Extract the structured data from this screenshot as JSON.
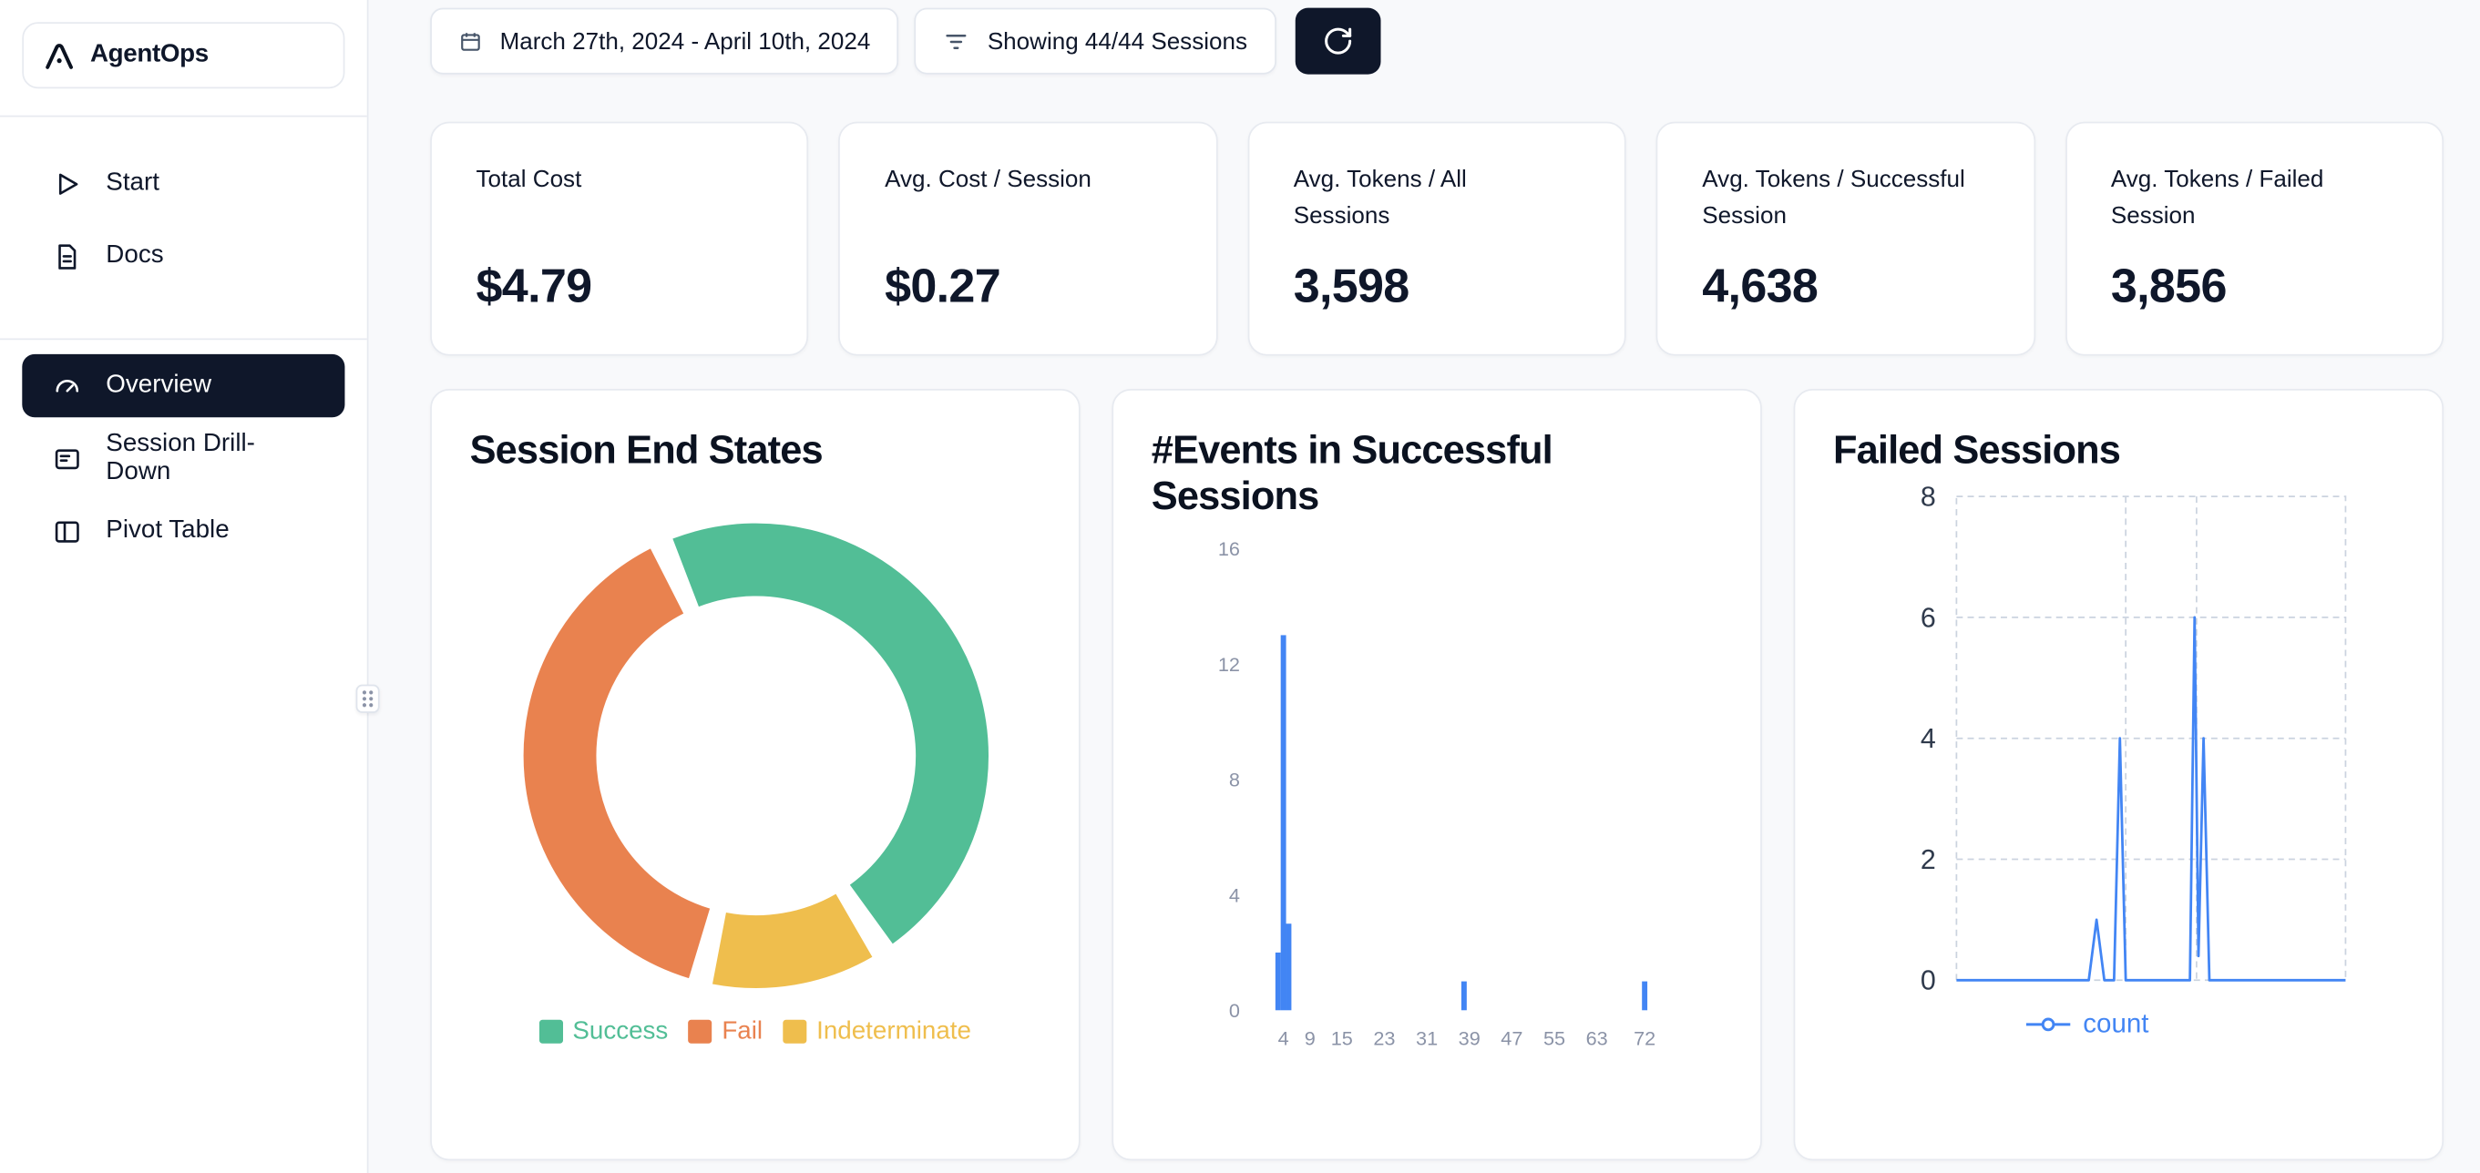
{
  "app": {
    "name": "AgentOps"
  },
  "sidebar": {
    "logo_text": "AgentOps",
    "primary_items": [
      {
        "label": "Start"
      },
      {
        "label": "Docs"
      }
    ],
    "secondary_items": [
      {
        "label": "Overview",
        "active": true
      },
      {
        "label": "Session Drill-Down",
        "active": false
      },
      {
        "label": "Pivot Table",
        "active": false
      }
    ]
  },
  "topbar": {
    "date_range": "March 27th, 2024 - April 10th, 2024",
    "sessions_filter": "Showing 44/44 Sessions"
  },
  "stats": [
    {
      "label": "Total Cost",
      "value": "$4.79"
    },
    {
      "label": "Avg. Cost / Session",
      "value": "$0.27"
    },
    {
      "label": "Avg. Tokens / All Sessions",
      "value": "3,598"
    },
    {
      "label": "Avg. Tokens / Successful Session",
      "value": "4,638"
    },
    {
      "label": "Avg. Tokens / Failed Session",
      "value": "3,856"
    }
  ],
  "icons": {
    "logo": "agentops-mark",
    "start": "play-icon",
    "docs": "document-icon",
    "overview": "gauge-icon",
    "drilldown": "list-card-icon",
    "pivot": "table-columns-icon",
    "date": "calendar-icon",
    "filter": "filter-icon",
    "refresh": "refresh-icon",
    "resize": "grip-dots-icon"
  },
  "colors": {
    "accent_dark": "#0f172a",
    "success": "#52BE96",
    "fail": "#E9824F",
    "indeterminate": "#EFBE4D",
    "chart_blue": "#4285F4",
    "background": "#f8f9fb"
  },
  "chart_data": [
    {
      "type": "pie",
      "donut": true,
      "title": "Session End States",
      "start_angle": -57,
      "legend_position": "bottom",
      "segments": [
        {
          "label": "Success",
          "pct": 47.5,
          "color": "#52BE96"
        },
        {
          "label": "Fail",
          "pct": 39.5,
          "color": "#E9824F"
        },
        {
          "label": "Indeterminate",
          "pct": 13,
          "color": "#EFBE4D"
        }
      ]
    },
    {
      "type": "bar",
      "title": "#Events in Successful Sessions",
      "bar_color": "#4285F4",
      "xlabel": "",
      "ylabel": "",
      "x_ticks": [
        4,
        9,
        15,
        23,
        31,
        39,
        47,
        55,
        63,
        72
      ],
      "y_ticks": [
        0,
        4,
        8,
        12,
        16
      ],
      "x_max": 78,
      "y_max": 16,
      "grid": false,
      "bars": [
        {
          "x": 3,
          "count": 2
        },
        {
          "x": 4,
          "count": 13
        },
        {
          "x": 5,
          "count": 3
        },
        {
          "x": 38,
          "count": 1
        },
        {
          "x": 72,
          "count": 1
        }
      ]
    },
    {
      "type": "line",
      "title": "Failed Sessions",
      "line_color": "#4285F4",
      "legend": "count",
      "y_ticks": [
        0,
        2,
        4,
        6,
        8
      ],
      "y_max": 8,
      "grid": "dashed",
      "v_gridlines": [
        0.435,
        0.617
      ],
      "points": [
        [
          0,
          0
        ],
        [
          0.34,
          0
        ],
        [
          0.36,
          1
        ],
        [
          0.38,
          0
        ],
        [
          0.405,
          0
        ],
        [
          0.42,
          4
        ],
        [
          0.435,
          0
        ],
        [
          0.6,
          0
        ],
        [
          0.612,
          6
        ],
        [
          0.622,
          0.4
        ],
        [
          0.635,
          4
        ],
        [
          0.65,
          0
        ],
        [
          1,
          0
        ]
      ]
    }
  ]
}
